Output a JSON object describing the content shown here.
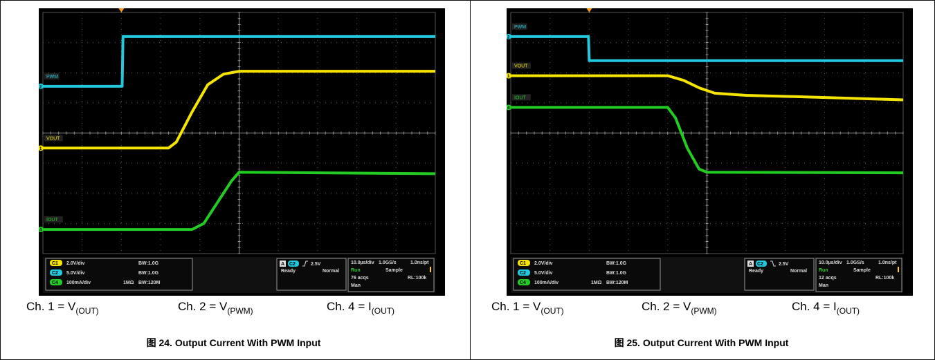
{
  "figures": [
    {
      "caption": "图 24. Output Current With PWM Input",
      "channel_labels": [
        {
          "prefix": "Ch. 1 = V",
          "sub": "(OUT)"
        },
        {
          "prefix": "Ch. 2 = V",
          "sub": "(PWM)"
        },
        {
          "prefix": "Ch. 4 = I",
          "sub": "(OUT)"
        }
      ],
      "scope": {
        "trace_labels": {
          "pwm": "PWM",
          "vout": "VOUT",
          "iout": "IOUT"
        },
        "ch_markers": [
          "2",
          "1",
          "4"
        ],
        "channel_settings": [
          {
            "ch": "C1",
            "scale": "2.0V/div",
            "bw": "BW:1.0G",
            "imp": ""
          },
          {
            "ch": "C2",
            "scale": "5.0V/div",
            "bw": "BW:1.0G",
            "imp": ""
          },
          {
            "ch": "C4",
            "scale": "100mA/div",
            "bw": "BW:120M",
            "imp": "1MΩ"
          }
        ],
        "trigger": {
          "source": "A",
          "ch": "C2",
          "slope": "rising",
          "level": "2.5V",
          "state": "Ready",
          "mode": "Normal"
        },
        "acquisition": {
          "timebase": "10.0µs/div",
          "rate": "1.0GS/s",
          "resolution": "1.0ns/pt",
          "run": "Run",
          "sample": "Sample",
          "acqs": "76 acqs",
          "rl": "RL:100k",
          "man": "Man"
        }
      }
    },
    {
      "caption": "图 25. Output Current With PWM Input",
      "channel_labels": [
        {
          "prefix": "Ch. 1 = V",
          "sub": "(OUT)"
        },
        {
          "prefix": "Ch. 2 = V",
          "sub": "(PWM)"
        },
        {
          "prefix": "Ch. 4 = I",
          "sub": "(OUT)"
        }
      ],
      "scope": {
        "trace_labels": {
          "pwm": "PWM",
          "vout": "VOUT",
          "iout": "IOUT"
        },
        "ch_markers": [
          "2",
          "1",
          "4"
        ],
        "channel_settings": [
          {
            "ch": "C1",
            "scale": "2.0V/div",
            "bw": "BW:1.0G",
            "imp": ""
          },
          {
            "ch": "C2",
            "scale": "5.0V/div",
            "bw": "BW:1.0G",
            "imp": ""
          },
          {
            "ch": "C4",
            "scale": "100mA/div",
            "bw": "BW:120M",
            "imp": "1MΩ"
          }
        ],
        "trigger": {
          "source": "A",
          "ch": "C2",
          "slope": "falling",
          "level": "2.5V",
          "state": "Ready",
          "mode": "Normal"
        },
        "acquisition": {
          "timebase": "10.0µs/div",
          "rate": "1.0GS/s",
          "resolution": "1.0ns/pt",
          "run": "Run",
          "sample": "Sample",
          "acqs": "12 acqs",
          "rl": "RL:100k",
          "man": "Man"
        }
      }
    }
  ],
  "chart_data": [
    {
      "type": "line",
      "x_unit": "µs",
      "xlim": [
        0,
        100
      ],
      "ylim_divisions": [
        -4,
        4
      ],
      "colors": {
        "C1": "#f5e400",
        "C2": "#22c8dc",
        "C4": "#22cc22"
      },
      "series": [
        {
          "name": "PWM",
          "color": "#22c8dc",
          "points": [
            [
              0,
              1.55
            ],
            [
              20.2,
              1.55
            ],
            [
              20.4,
              3.2
            ],
            [
              100,
              3.2
            ]
          ]
        },
        {
          "name": "VOUT",
          "color": "#f5e400",
          "points": [
            [
              0,
              -0.5
            ],
            [
              32,
              -0.5
            ],
            [
              34,
              -0.3
            ],
            [
              38,
              0.7
            ],
            [
              42,
              1.6
            ],
            [
              46,
              1.95
            ],
            [
              50,
              2.05
            ],
            [
              100,
              2.05
            ]
          ]
        },
        {
          "name": "IOUT",
          "color": "#22cc22",
          "points": [
            [
              0,
              -3.2
            ],
            [
              38,
              -3.2
            ],
            [
              41,
              -3.0
            ],
            [
              44,
              -2.4
            ],
            [
              48,
              -1.6
            ],
            [
              50,
              -1.3
            ],
            [
              100,
              -1.35
            ]
          ]
        }
      ]
    },
    {
      "type": "line",
      "x_unit": "µs",
      "xlim": [
        0,
        100
      ],
      "ylim_divisions": [
        -4,
        4
      ],
      "colors": {
        "C1": "#f5e400",
        "C2": "#22c8dc",
        "C4": "#22cc22"
      },
      "series": [
        {
          "name": "PWM",
          "color": "#22c8dc",
          "points": [
            [
              0,
              3.2
            ],
            [
              19.8,
              3.2
            ],
            [
              20,
              2.4
            ],
            [
              100,
              2.4
            ]
          ]
        },
        {
          "name": "VOUT",
          "color": "#f5e400",
          "points": [
            [
              0,
              1.9
            ],
            [
              40,
              1.9
            ],
            [
              44,
              1.75
            ],
            [
              48,
              1.5
            ],
            [
              52,
              1.32
            ],
            [
              60,
              1.25
            ],
            [
              75,
              1.2
            ],
            [
              100,
              1.1
            ]
          ]
        },
        {
          "name": "IOUT",
          "color": "#22cc22",
          "points": [
            [
              0,
              0.85
            ],
            [
              40,
              0.85
            ],
            [
              42,
              0.5
            ],
            [
              45,
              -0.5
            ],
            [
              48,
              -1.2
            ],
            [
              50,
              -1.3
            ],
            [
              100,
              -1.32
            ]
          ]
        }
      ]
    }
  ]
}
